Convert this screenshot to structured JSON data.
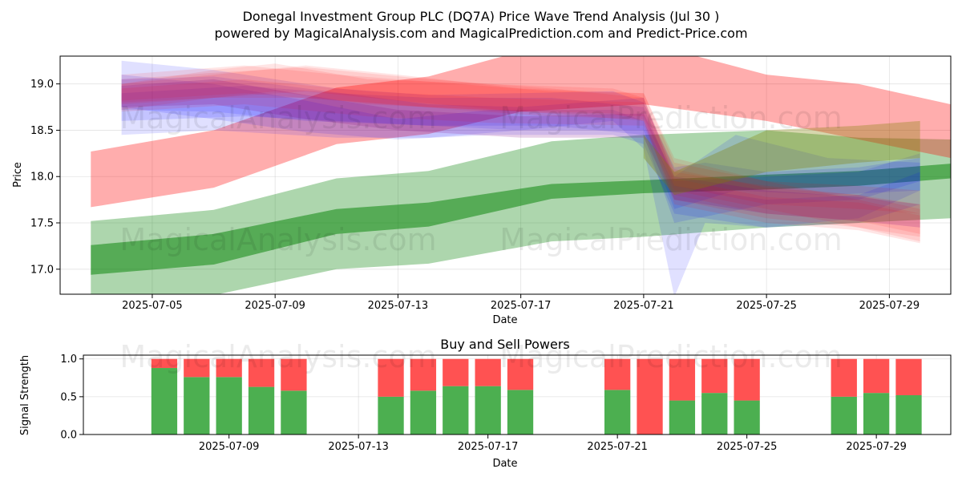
{
  "title_line1": "Donegal Investment Group PLC (DQ7A) Price Wave Trend Analysis (Jul 30 )",
  "title_line2": "powered by MagicalAnalysis.com and MagicalPrediction.com and Predict-Price.com",
  "watermarks": [
    "MagicalAnalysis.com",
    "MagicalPrediction.com"
  ],
  "colors": {
    "red": "#ff0000",
    "green": "#008000",
    "blue": "#0000ff",
    "buy": "#4caf50",
    "sell": "#ff5252"
  },
  "chart_data": [
    {
      "type": "area",
      "xlabel": "Date",
      "ylabel": "Price",
      "x_range": [
        "2025-07-02",
        "2025-07-31"
      ],
      "ylim": [
        16.73,
        19.3
      ],
      "x_ticks": [
        "2025-07-05",
        "2025-07-09",
        "2025-07-13",
        "2025-07-17",
        "2025-07-21",
        "2025-07-25",
        "2025-07-29"
      ],
      "y_ticks": [
        "17.0",
        "17.5",
        "18.0",
        "18.5",
        "19.0"
      ],
      "grid": true,
      "series": [
        {
          "name": "green-wide-band",
          "color": "green",
          "opacity": 0.32,
          "x": [
            "2025-07-03",
            "2025-07-07",
            "2025-07-11",
            "2025-07-14",
            "2025-07-18",
            "2025-07-21",
            "2025-07-25",
            "2025-07-28",
            "2025-07-31"
          ],
          "upper": [
            17.52,
            17.64,
            17.98,
            18.06,
            18.38,
            18.45,
            18.5,
            18.42,
            18.4
          ],
          "lower": [
            16.55,
            16.72,
            17.0,
            17.06,
            17.3,
            17.35,
            17.45,
            17.5,
            17.55
          ]
        },
        {
          "name": "green-core",
          "color": "green",
          "opacity": 0.5,
          "x": [
            "2025-07-03",
            "2025-07-07",
            "2025-07-11",
            "2025-07-14",
            "2025-07-18",
            "2025-07-21",
            "2025-07-25",
            "2025-07-28",
            "2025-07-31"
          ],
          "upper": [
            17.26,
            17.38,
            17.65,
            17.72,
            17.92,
            17.96,
            18.02,
            18.06,
            18.14
          ],
          "lower": [
            16.94,
            17.05,
            17.38,
            17.46,
            17.76,
            17.82,
            17.86,
            17.9,
            17.98
          ]
        },
        {
          "name": "red-wide-band",
          "color": "red",
          "opacity": 0.32,
          "x": [
            "2025-07-03",
            "2025-07-07",
            "2025-07-11",
            "2025-07-14",
            "2025-07-17",
            "2025-07-21",
            "2025-07-25",
            "2025-07-28",
            "2025-07-31"
          ],
          "upper": [
            18.27,
            18.5,
            18.96,
            19.08,
            19.35,
            19.45,
            19.1,
            19.0,
            18.78
          ],
          "lower": [
            17.67,
            17.88,
            18.35,
            18.46,
            18.7,
            18.78,
            18.6,
            18.4,
            18.2
          ]
        },
        {
          "name": "blue-band-1",
          "color": "blue",
          "opacity": 0.12,
          "x": [
            "2025-07-04",
            "2025-07-07",
            "2025-07-11",
            "2025-07-14",
            "2025-07-17",
            "2025-07-20",
            "2025-07-21",
            "2025-07-22",
            "2025-07-23",
            "2025-07-25",
            "2025-07-28",
            "2025-07-30"
          ],
          "upper": [
            19.25,
            19.15,
            18.95,
            18.88,
            18.9,
            18.92,
            18.8,
            18.1,
            18.15,
            18.05,
            18.1,
            18.2
          ],
          "lower": [
            18.45,
            18.5,
            18.42,
            18.42,
            18.5,
            18.6,
            18.3,
            16.7,
            17.5,
            17.45,
            17.5,
            17.7
          ]
        },
        {
          "name": "blue-band-2",
          "color": "blue",
          "opacity": 0.12,
          "x": [
            "2025-07-04",
            "2025-07-07",
            "2025-07-10",
            "2025-07-14",
            "2025-07-17",
            "2025-07-21",
            "2025-07-22",
            "2025-07-24",
            "2025-07-27",
            "2025-07-30"
          ],
          "upper": [
            19.05,
            19.08,
            18.95,
            18.78,
            18.75,
            18.85,
            18.0,
            18.45,
            18.2,
            18.15
          ],
          "lower": [
            18.72,
            18.7,
            18.6,
            18.55,
            18.5,
            18.5,
            17.65,
            17.85,
            17.8,
            17.85
          ]
        },
        {
          "name": "blue-band-3",
          "color": "blue",
          "opacity": 0.12,
          "x": [
            "2025-07-04",
            "2025-07-07",
            "2025-07-10",
            "2025-07-13",
            "2025-07-16",
            "2025-07-20",
            "2025-07-21",
            "2025-07-22",
            "2025-07-25",
            "2025-07-28",
            "2025-07-30"
          ],
          "upper": [
            19.1,
            19.0,
            18.82,
            18.62,
            18.72,
            18.72,
            18.6,
            17.9,
            17.75,
            17.8,
            18.05
          ],
          "lower": [
            18.75,
            18.62,
            18.48,
            18.4,
            18.45,
            18.45,
            18.35,
            17.6,
            17.45,
            17.55,
            17.85
          ]
        },
        {
          "name": "blue-band-4",
          "color": "blue",
          "opacity": 0.12,
          "x": [
            "2025-07-04",
            "2025-07-08",
            "2025-07-11",
            "2025-07-14",
            "2025-07-18",
            "2025-07-21",
            "2025-07-22",
            "2025-07-25",
            "2025-07-28",
            "2025-07-30"
          ],
          "upper": [
            18.9,
            18.98,
            18.9,
            18.85,
            18.85,
            18.75,
            17.95,
            18.0,
            18.05,
            18.25
          ],
          "lower": [
            18.6,
            18.65,
            18.6,
            18.55,
            18.55,
            18.45,
            17.5,
            17.7,
            17.75,
            17.95
          ]
        },
        {
          "name": "red-band-1",
          "color": "red",
          "opacity": 0.1,
          "x": [
            "2025-07-04",
            "2025-07-07",
            "2025-07-10",
            "2025-07-14",
            "2025-07-18",
            "2025-07-21",
            "2025-07-22",
            "2025-07-25",
            "2025-07-28",
            "2025-07-30"
          ],
          "upper": [
            19.05,
            19.12,
            19.18,
            19.05,
            18.95,
            18.85,
            18.05,
            17.9,
            17.8,
            17.7
          ],
          "lower": [
            18.8,
            18.85,
            18.85,
            18.75,
            18.68,
            18.6,
            17.75,
            17.55,
            17.45,
            17.35
          ]
        },
        {
          "name": "red-band-2",
          "color": "red",
          "opacity": 0.1,
          "x": [
            "2025-07-04",
            "2025-07-08",
            "2025-07-11",
            "2025-07-15",
            "2025-07-18",
            "2025-07-21",
            "2025-07-22",
            "2025-07-25",
            "2025-07-28",
            "2025-07-30"
          ],
          "upper": [
            19.1,
            19.2,
            19.1,
            19.0,
            18.92,
            18.9,
            18.15,
            17.95,
            17.75,
            17.6
          ],
          "lower": [
            18.82,
            18.9,
            18.82,
            18.72,
            18.65,
            18.62,
            17.85,
            17.65,
            17.45,
            17.3
          ]
        },
        {
          "name": "red-band-3",
          "color": "red",
          "opacity": 0.1,
          "x": [
            "2025-07-04",
            "2025-07-07",
            "2025-07-09",
            "2025-07-12",
            "2025-07-16",
            "2025-07-20",
            "2025-07-21",
            "2025-07-22",
            "2025-07-25",
            "2025-07-28",
            "2025-07-30"
          ],
          "upper": [
            19.0,
            19.15,
            19.22,
            19.05,
            19.0,
            18.95,
            18.85,
            17.98,
            17.78,
            17.72,
            17.58
          ],
          "lower": [
            18.72,
            18.85,
            18.92,
            18.78,
            18.72,
            18.68,
            18.6,
            17.7,
            17.5,
            17.42,
            17.28
          ]
        },
        {
          "name": "red-band-4",
          "color": "red",
          "opacity": 0.1,
          "x": [
            "2025-07-04",
            "2025-07-08",
            "2025-07-12",
            "2025-07-16",
            "2025-07-21",
            "2025-07-22",
            "2025-07-25",
            "2025-07-28",
            "2025-07-30"
          ],
          "upper": [
            18.95,
            19.05,
            18.92,
            18.85,
            18.8,
            18.08,
            17.88,
            17.8,
            17.65
          ],
          "lower": [
            18.7,
            18.78,
            18.65,
            18.58,
            18.55,
            17.8,
            17.6,
            17.52,
            17.38
          ]
        },
        {
          "name": "red-band-5",
          "color": "red",
          "opacity": 0.1,
          "x": [
            "2025-07-04",
            "2025-07-07",
            "2025-07-10",
            "2025-07-13",
            "2025-07-17",
            "2025-07-21",
            "2025-07-22",
            "2025-07-25",
            "2025-07-28",
            "2025-07-30"
          ],
          "upper": [
            19.0,
            19.1,
            19.2,
            19.1,
            18.95,
            18.9,
            18.2,
            17.95,
            17.9,
            17.85
          ],
          "lower": [
            18.78,
            18.85,
            18.92,
            18.82,
            18.7,
            18.65,
            17.9,
            17.7,
            17.65,
            17.6
          ]
        },
        {
          "name": "purple-band",
          "color": "purple",
          "opacity": 0.18,
          "x": [
            "2025-07-04",
            "2025-07-07",
            "2025-07-10",
            "2025-07-13",
            "2025-07-17",
            "2025-07-21",
            "2025-07-22",
            "2025-07-25",
            "2025-07-28",
            "2025-07-30"
          ],
          "upper": [
            18.98,
            19.05,
            18.88,
            18.72,
            18.65,
            18.68,
            18.0,
            17.85,
            17.78,
            17.7
          ],
          "lower": [
            18.75,
            18.78,
            18.62,
            18.5,
            18.42,
            18.42,
            17.75,
            17.6,
            17.52,
            17.45
          ]
        },
        {
          "name": "olive-band",
          "color": "olive",
          "opacity": 0.32,
          "x": [
            "2025-07-21",
            "2025-07-22",
            "2025-07-25",
            "2025-07-28",
            "2025-07-30"
          ],
          "upper": [
            18.45,
            18.05,
            18.5,
            18.55,
            18.6
          ],
          "lower": [
            18.2,
            17.8,
            18.05,
            18.15,
            18.2
          ]
        }
      ]
    },
    {
      "type": "bar",
      "title": "Buy and Sell Powers",
      "xlabel": "Date",
      "ylabel": "Signal Strength",
      "ylim": [
        0,
        1.05
      ],
      "x_range": [
        "2025-07-04.5",
        "2025-07-31.3"
      ],
      "x_ticks": [
        "2025-07-09",
        "2025-07-13",
        "2025-07-17",
        "2025-07-21",
        "2025-07-25",
        "2025-07-29"
      ],
      "y_ticks": [
        "0.0",
        "0.5",
        "1.0"
      ],
      "categories": [
        "2025-07-07",
        "2025-07-08",
        "2025-07-09",
        "2025-07-10",
        "2025-07-11",
        "2025-07-14",
        "2025-07-15",
        "2025-07-16",
        "2025-07-17",
        "2025-07-18",
        "2025-07-21",
        "2025-07-22",
        "2025-07-23",
        "2025-07-24",
        "2025-07-25",
        "2025-07-28",
        "2025-07-29",
        "2025-07-30"
      ],
      "series": [
        {
          "name": "Buy",
          "color": "buy",
          "values": [
            0.88,
            0.76,
            0.76,
            0.63,
            0.58,
            0.5,
            0.58,
            0.64,
            0.64,
            0.59,
            0.59,
            0.0,
            0.45,
            0.55,
            0.45,
            0.5,
            0.55,
            0.52
          ]
        },
        {
          "name": "Sell",
          "color": "sell",
          "values": [
            0.12,
            0.24,
            0.24,
            0.37,
            0.42,
            0.5,
            0.42,
            0.36,
            0.36,
            0.41,
            0.41,
            1.0,
            0.55,
            0.45,
            0.55,
            0.5,
            0.45,
            0.48
          ]
        }
      ]
    }
  ]
}
